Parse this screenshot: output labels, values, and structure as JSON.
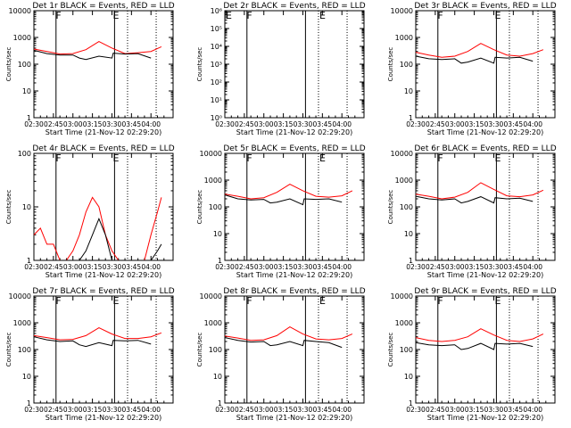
{
  "chart_data": [
    {
      "type": "line",
      "title": "Det 1r  BLACK = Events, RED = LLD",
      "xlabel": "Start Time (21-Nov-12 02:29:20)",
      "ylabel": "Counts/sec",
      "ylim": [
        1,
        10000
      ],
      "yticks": [
        "1",
        "10",
        "100",
        "1000",
        "10000"
      ],
      "xticks": [
        "02:30",
        "02:45",
        "03:00",
        "03:15",
        "03:30",
        "03:45",
        "04:00"
      ],
      "markers": [
        {
          "label": "F",
          "x": "02:46"
        },
        {
          "label": "E",
          "x": "03:30"
        }
      ],
      "dotted": [
        "03:42",
        "04:04"
      ],
      "series": [
        {
          "color": "#ff0000",
          "x": [
            "02:30",
            "02:40",
            "02:50",
            "03:00",
            "03:10",
            "03:20",
            "03:30",
            "03:40",
            "03:50",
            "04:00",
            "04:08"
          ],
          "y": [
            370,
            300,
            240,
            250,
            350,
            700,
            400,
            250,
            270,
            300,
            450
          ]
        },
        {
          "color": "#000000",
          "x": [
            "02:30",
            "02:40",
            "02:50",
            "03:00",
            "03:05",
            "03:10",
            "03:20",
            "03:30",
            "03:31",
            "03:40",
            "03:50",
            "04:00"
          ],
          "y": [
            330,
            250,
            220,
            220,
            170,
            150,
            200,
            170,
            260,
            240,
            250,
            170
          ]
        }
      ]
    },
    {
      "type": "line",
      "title": "Det 2r  BLACK = Events, RED = LLD",
      "xlabel": "Start Time (21-Nov-12 02:29:20)",
      "ylabel": "Counts/sec",
      "ylim": [
        1,
        1000000
      ],
      "yticks": [
        "10⁰",
        "10¹",
        "10²",
        "10³",
        "10⁴",
        "10⁵",
        "10⁶"
      ],
      "xticks": [
        "02:30",
        "02:45",
        "03:00",
        "03:15",
        "03:30",
        "03:45",
        "04:00"
      ],
      "markers": [
        {
          "label": "E",
          "x": "02:30"
        },
        {
          "label": "F",
          "x": "02:46"
        },
        {
          "label": "E",
          "x": "03:42"
        }
      ],
      "dotted": [
        "03:42",
        "04:04"
      ],
      "series": []
    },
    {
      "type": "line",
      "title": "Det 3r  BLACK = Events, RED = LLD",
      "xlabel": "Start Time (21-Nov-12 02:29:20)",
      "ylabel": "Counts/sec",
      "ylim": [
        1,
        10000
      ],
      "yticks": [
        "1",
        "10",
        "100",
        "1000",
        "10000"
      ],
      "xticks": [
        "02:30",
        "02:45",
        "03:00",
        "03:15",
        "03:30",
        "03:45",
        "04:00"
      ],
      "markers": [
        {
          "label": "F",
          "x": "02:46"
        },
        {
          "label": "E",
          "x": "03:30"
        }
      ],
      "dotted": [
        "03:42",
        "04:04"
      ],
      "series": [
        {
          "color": "#ff0000",
          "x": [
            "02:30",
            "02:40",
            "02:50",
            "03:00",
            "03:10",
            "03:20",
            "03:30",
            "03:40",
            "03:50",
            "04:00",
            "04:08"
          ],
          "y": [
            280,
            220,
            180,
            200,
            300,
            600,
            350,
            220,
            200,
            250,
            350
          ]
        },
        {
          "color": "#000000",
          "x": [
            "02:30",
            "02:40",
            "02:50",
            "03:00",
            "03:05",
            "03:10",
            "03:20",
            "03:30",
            "03:31",
            "03:40",
            "03:50",
            "04:00"
          ],
          "y": [
            200,
            160,
            150,
            160,
            110,
            120,
            170,
            110,
            180,
            170,
            180,
            130
          ]
        }
      ]
    },
    {
      "type": "line",
      "title": "Det 4r  BLACK = Events, RED = LLD",
      "xlabel": "Start Time (21-Nov-12 02:29:20)",
      "ylabel": "Counts/sec",
      "ylim": [
        1,
        100
      ],
      "yticks": [
        "1",
        "10",
        "100"
      ],
      "xticks": [
        "02:30",
        "02:45",
        "03:00",
        "03:15",
        "03:30",
        "03:45",
        "04:00"
      ],
      "markers": [
        {
          "label": "F",
          "x": "02:46"
        },
        {
          "label": "E",
          "x": "03:30"
        }
      ],
      "dotted": [
        "03:42",
        "04:04"
      ],
      "series": [
        {
          "color": "#ff0000",
          "x": [
            "02:30",
            "02:35",
            "02:40",
            "02:45",
            "02:50",
            "02:55",
            "03:00",
            "03:05",
            "03:10",
            "03:15",
            "03:20",
            "03:25",
            "03:30",
            "03:35",
            "03:40",
            "03:45",
            "03:50",
            "03:55",
            "04:00",
            "04:05",
            "04:08"
          ],
          "y": [
            3,
            4,
            2,
            2,
            1,
            1,
            1.5,
            3,
            8,
            15,
            10,
            3,
            1.5,
            1,
            1,
            1,
            1,
            1,
            3,
            8,
            15
          ]
        },
        {
          "color": "#000000",
          "x": [
            "02:30",
            "02:45",
            "03:05",
            "03:10",
            "03:15",
            "03:20",
            "03:25",
            "03:30",
            "04:00",
            "04:05",
            "04:08"
          ],
          "y": [
            1,
            1,
            1,
            1.5,
            3,
            6,
            3,
            1,
            1,
            1.5,
            2
          ]
        }
      ]
    },
    {
      "type": "line",
      "title": "Det 5r  BLACK = Events, RED = LLD",
      "xlabel": "Start Time (21-Nov-12 02:29:20)",
      "ylabel": "Counts/sec",
      "ylim": [
        1,
        10000
      ],
      "yticks": [
        "1",
        "10",
        "100",
        "1000",
        "10000"
      ],
      "xticks": [
        "02:30",
        "02:45",
        "03:00",
        "03:15",
        "03:30",
        "03:45",
        "04:00"
      ],
      "markers": [
        {
          "label": "F",
          "x": "02:46"
        },
        {
          "label": "E",
          "x": "03:42"
        }
      ],
      "dotted": [
        "03:42",
        "04:04"
      ],
      "series": [
        {
          "color": "#ff0000",
          "x": [
            "02:30",
            "02:40",
            "02:50",
            "03:00",
            "03:10",
            "03:20",
            "03:30",
            "03:40",
            "03:50",
            "04:00",
            "04:08"
          ],
          "y": [
            300,
            250,
            200,
            220,
            350,
            700,
            400,
            250,
            230,
            260,
            400
          ]
        },
        {
          "color": "#000000",
          "x": [
            "02:30",
            "02:40",
            "02:50",
            "03:00",
            "03:05",
            "03:10",
            "03:20",
            "03:30",
            "03:31",
            "03:40",
            "03:50",
            "04:00"
          ],
          "y": [
            280,
            200,
            180,
            190,
            140,
            150,
            200,
            120,
            200,
            190,
            200,
            150
          ]
        }
      ]
    },
    {
      "type": "line",
      "title": "Det 6r  BLACK = Events, RED = LLD",
      "xlabel": "Start Time (21-Nov-12 02:29:20)",
      "ylabel": "Counts/sec",
      "ylim": [
        1,
        10000
      ],
      "yticks": [
        "1",
        "10",
        "100",
        "1000",
        "10000"
      ],
      "xticks": [
        "02:30",
        "02:45",
        "03:00",
        "03:15",
        "03:30",
        "03:45",
        "04:00"
      ],
      "markers": [
        {
          "label": "F",
          "x": "02:46"
        },
        {
          "label": "E",
          "x": "03:30"
        }
      ],
      "dotted": [
        "03:42",
        "04:04"
      ],
      "series": [
        {
          "color": "#ff0000",
          "x": [
            "02:30",
            "02:40",
            "02:50",
            "03:00",
            "03:10",
            "03:20",
            "03:30",
            "03:40",
            "03:50",
            "04:00",
            "04:08"
          ],
          "y": [
            300,
            250,
            200,
            230,
            350,
            800,
            450,
            260,
            240,
            280,
            420
          ]
        },
        {
          "color": "#000000",
          "x": [
            "02:30",
            "02:40",
            "02:50",
            "03:00",
            "03:05",
            "03:10",
            "03:20",
            "03:30",
            "03:31",
            "03:40",
            "03:50",
            "04:00"
          ],
          "y": [
            250,
            200,
            180,
            200,
            140,
            160,
            240,
            140,
            220,
            200,
            210,
            160
          ]
        }
      ]
    },
    {
      "type": "line",
      "title": "Det 7r  BLACK = Events, RED = LLD",
      "xlabel": "Start Time (21-Nov-12 02:29:20)",
      "ylabel": "Counts/sec",
      "ylim": [
        1,
        10000
      ],
      "yticks": [
        "1",
        "10",
        "100",
        "1000",
        "10000"
      ],
      "xticks": [
        "02:30",
        "02:45",
        "03:00",
        "03:15",
        "03:30",
        "03:45",
        "04:00"
      ],
      "markers": [
        {
          "label": "F",
          "x": "02:46"
        },
        {
          "label": "E",
          "x": "03:30"
        }
      ],
      "dotted": [
        "03:42",
        "04:04"
      ],
      "series": [
        {
          "color": "#ff0000",
          "x": [
            "02:30",
            "02:40",
            "02:50",
            "03:00",
            "03:10",
            "03:20",
            "03:30",
            "03:40",
            "03:50",
            "04:00",
            "04:08"
          ],
          "y": [
            330,
            280,
            230,
            240,
            330,
            650,
            380,
            260,
            260,
            300,
            420
          ]
        },
        {
          "color": "#000000",
          "x": [
            "02:30",
            "02:40",
            "02:50",
            "03:00",
            "03:05",
            "03:10",
            "03:20",
            "03:30",
            "03:31",
            "03:40",
            "03:50",
            "04:00"
          ],
          "y": [
            300,
            230,
            200,
            210,
            150,
            130,
            180,
            140,
            220,
            210,
            220,
            160
          ]
        }
      ]
    },
    {
      "type": "line",
      "title": "Det 8r  BLACK = Events, RED = LLD",
      "xlabel": "Start Time (21-Nov-12 02:29:20)",
      "ylabel": "Counts/sec",
      "ylim": [
        1,
        10000
      ],
      "yticks": [
        "1",
        "10",
        "100",
        "1000",
        "10000"
      ],
      "xticks": [
        "02:30",
        "02:45",
        "03:00",
        "03:15",
        "03:30",
        "03:45",
        "04:00"
      ],
      "markers": [
        {
          "label": "F",
          "x": "02:46"
        },
        {
          "label": "E",
          "x": "03:42"
        }
      ],
      "dotted": [
        "03:42",
        "04:04"
      ],
      "series": [
        {
          "color": "#ff0000",
          "x": [
            "02:30",
            "02:40",
            "02:50",
            "03:00",
            "03:10",
            "03:20",
            "03:30",
            "03:40",
            "03:50",
            "04:00",
            "04:08"
          ],
          "y": [
            320,
            270,
            220,
            230,
            330,
            700,
            380,
            250,
            230,
            260,
            380
          ]
        },
        {
          "color": "#000000",
          "x": [
            "02:30",
            "02:40",
            "02:50",
            "03:00",
            "03:05",
            "03:10",
            "03:20",
            "03:30",
            "03:31",
            "03:40",
            "03:50",
            "04:00"
          ],
          "y": [
            280,
            220,
            190,
            200,
            140,
            150,
            200,
            140,
            220,
            200,
            180,
            120
          ]
        }
      ]
    },
    {
      "type": "line",
      "title": "Det 9r  BLACK = Events, RED = LLD",
      "xlabel": "Start Time (21-Nov-12 02:29:20)",
      "ylabel": "Counts/sec",
      "ylim": [
        1,
        10000
      ],
      "yticks": [
        "1",
        "10",
        "100",
        "1000",
        "10000"
      ],
      "xticks": [
        "02:30",
        "02:45",
        "03:00",
        "03:15",
        "03:30",
        "03:45",
        "04:00"
      ],
      "markers": [
        {
          "label": "F",
          "x": "02:46"
        },
        {
          "label": "E",
          "x": "03:30"
        }
      ],
      "dotted": [
        "03:42",
        "04:04"
      ],
      "series": [
        {
          "color": "#ff0000",
          "x": [
            "02:30",
            "02:40",
            "02:50",
            "03:00",
            "03:10",
            "03:20",
            "03:30",
            "03:40",
            "03:50",
            "04:00",
            "04:08"
          ],
          "y": [
            280,
            220,
            200,
            220,
            300,
            600,
            350,
            220,
            200,
            250,
            380
          ]
        },
        {
          "color": "#000000",
          "x": [
            "02:30",
            "02:40",
            "02:50",
            "03:00",
            "03:05",
            "03:10",
            "03:20",
            "03:30",
            "03:31",
            "03:40",
            "03:50",
            "04:00"
          ],
          "y": [
            180,
            150,
            140,
            150,
            100,
            110,
            170,
            100,
            170,
            160,
            170,
            130
          ]
        }
      ]
    }
  ]
}
